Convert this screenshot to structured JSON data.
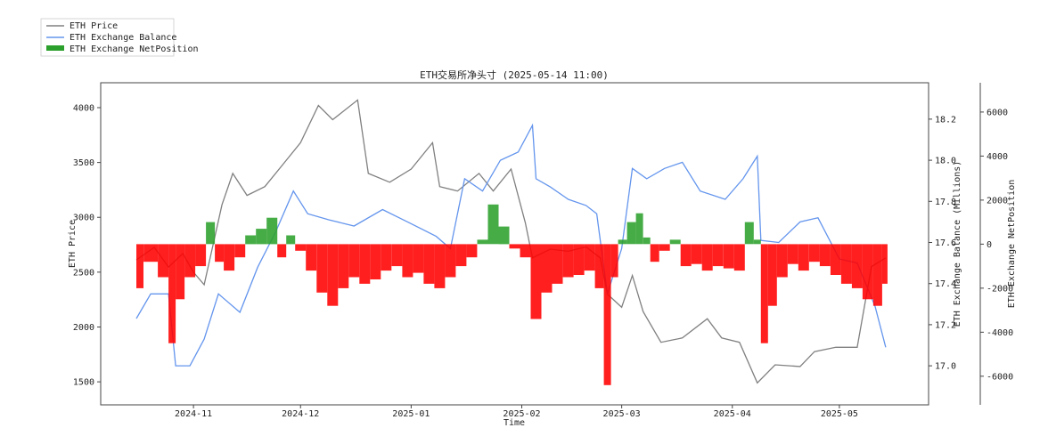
{
  "chart_data": {
    "type": "line",
    "title": "ETH交易所净头寸 (2025-05-14 11:00)",
    "xlabel": "Time",
    "ylabel_left": "ETH Price",
    "ylabel_right": "ETH Exchange Balance (Millions)",
    "ylabel_right2": "ETH Exchange NetPosition",
    "xlim": [
      "2024-10-06",
      "2025-05-26"
    ],
    "ylim_left": [
      1290,
      4227
    ],
    "ylim_right": [
      16.81,
      18.377
    ],
    "ylim_right2": [
      -7300,
      7330
    ],
    "xticks": [
      "2024-11",
      "2024-12",
      "2025-01",
      "2025-02",
      "2025-03",
      "2025-04",
      "2025-05"
    ],
    "yticks_left": [
      1500,
      2000,
      2500,
      3000,
      3500,
      4000
    ],
    "yticks_right": [
      "17.0",
      "17.2",
      "17.4",
      "17.6",
      "17.8",
      "18.0",
      "18.2"
    ],
    "yticks_right2": [
      -6000,
      -4000,
      -2000,
      0,
      2000,
      4000,
      6000
    ],
    "grid": false,
    "legend": {
      "placement": "outside-top-left",
      "entries": [
        "ETH Price",
        "ETH Exchange Balance",
        "ETH Exchange NetPosition"
      ]
    },
    "colors": {
      "price": "#808080",
      "balance": "#6495ed",
      "net_positive": "#2ca02c",
      "net_negative": "#ff0000"
    },
    "series": [
      {
        "name": "ETH Price",
        "axis": "left",
        "points": [
          [
            "2024-10-16",
            2612
          ],
          [
            "2024-10-21",
            2726
          ],
          [
            "2024-10-25",
            2547
          ],
          [
            "2024-10-29",
            2670
          ],
          [
            "2024-11-01",
            2500
          ],
          [
            "2024-11-04",
            2385
          ],
          [
            "2024-11-09",
            3115
          ],
          [
            "2024-11-12",
            3400
          ],
          [
            "2024-11-16",
            3200
          ],
          [
            "2024-11-21",
            3280
          ],
          [
            "2024-11-26",
            3480
          ],
          [
            "2024-12-01",
            3680
          ],
          [
            "2024-12-06",
            4020
          ],
          [
            "2024-12-10",
            3890
          ],
          [
            "2024-12-17",
            4070
          ],
          [
            "2024-12-20",
            3400
          ],
          [
            "2024-12-26",
            3320
          ],
          [
            "2025-01-01",
            3440
          ],
          [
            "2025-01-07",
            3680
          ],
          [
            "2025-01-09",
            3280
          ],
          [
            "2025-01-14",
            3240
          ],
          [
            "2025-01-20",
            3400
          ],
          [
            "2025-01-24",
            3240
          ],
          [
            "2025-01-29",
            3440
          ],
          [
            "2025-02-02",
            2950
          ],
          [
            "2025-02-04",
            2630
          ],
          [
            "2025-02-09",
            2710
          ],
          [
            "2025-02-14",
            2690
          ],
          [
            "2025-02-19",
            2730
          ],
          [
            "2025-02-23",
            2630
          ],
          [
            "2025-02-25",
            2300
          ],
          [
            "2025-03-01",
            2180
          ],
          [
            "2025-03-04",
            2470
          ],
          [
            "2025-03-07",
            2140
          ],
          [
            "2025-03-12",
            1860
          ],
          [
            "2025-03-18",
            1900
          ],
          [
            "2025-03-25",
            2075
          ],
          [
            "2025-03-29",
            1900
          ],
          [
            "2025-04-03",
            1860
          ],
          [
            "2025-04-08",
            1490
          ],
          [
            "2025-04-13",
            1655
          ],
          [
            "2025-04-20",
            1640
          ],
          [
            "2025-04-24",
            1775
          ],
          [
            "2025-04-30",
            1815
          ],
          [
            "2025-05-06",
            1815
          ],
          [
            "2025-05-10",
            2550
          ],
          [
            "2025-05-14",
            2630
          ]
        ]
      },
      {
        "name": "ETH Exchange Balance",
        "axis": "right",
        "points": [
          [
            "2024-10-16",
            17.23
          ],
          [
            "2024-10-20",
            17.35
          ],
          [
            "2024-10-25",
            17.35
          ],
          [
            "2024-10-27",
            17.0
          ],
          [
            "2024-10-31",
            17.0
          ],
          [
            "2024-11-04",
            17.13
          ],
          [
            "2024-11-08",
            17.35
          ],
          [
            "2024-11-14",
            17.26
          ],
          [
            "2024-11-19",
            17.48
          ],
          [
            "2024-11-24",
            17.65
          ],
          [
            "2024-11-29",
            17.85
          ],
          [
            "2024-12-03",
            17.74
          ],
          [
            "2024-12-09",
            17.71
          ],
          [
            "2024-12-16",
            17.68
          ],
          [
            "2024-12-24",
            17.76
          ],
          [
            "2024-12-31",
            17.7
          ],
          [
            "2025-01-08",
            17.63
          ],
          [
            "2025-01-12",
            17.57
          ],
          [
            "2025-01-16",
            17.91
          ],
          [
            "2025-01-21",
            17.85
          ],
          [
            "2025-01-26",
            18.0
          ],
          [
            "2025-01-31",
            18.04
          ],
          [
            "2025-02-04",
            18.17
          ],
          [
            "2025-02-05",
            17.91
          ],
          [
            "2025-02-09",
            17.87
          ],
          [
            "2025-02-14",
            17.81
          ],
          [
            "2025-02-19",
            17.78
          ],
          [
            "2025-02-22",
            17.74
          ],
          [
            "2025-02-25",
            17.35
          ],
          [
            "2025-03-01",
            17.57
          ],
          [
            "2025-03-04",
            17.96
          ],
          [
            "2025-03-08",
            17.91
          ],
          [
            "2025-03-13",
            17.96
          ],
          [
            "2025-03-18",
            17.99
          ],
          [
            "2025-03-23",
            17.85
          ],
          [
            "2025-03-30",
            17.81
          ],
          [
            "2025-04-04",
            17.91
          ],
          [
            "2025-04-08",
            18.02
          ],
          [
            "2025-04-09",
            17.61
          ],
          [
            "2025-04-14",
            17.6
          ],
          [
            "2025-04-20",
            17.7
          ],
          [
            "2025-04-25",
            17.72
          ],
          [
            "2025-05-01",
            17.52
          ],
          [
            "2025-05-06",
            17.5
          ],
          [
            "2025-05-11",
            17.29
          ],
          [
            "2025-05-14",
            17.09
          ]
        ]
      },
      {
        "name": "ETH Exchange NetPosition",
        "axis": "right2",
        "points": [
          [
            "2024-10-16",
            -2000
          ],
          [
            "2024-10-20",
            -800
          ],
          [
            "2024-10-24",
            -1500
          ],
          [
            "2024-10-26",
            -4500
          ],
          [
            "2024-10-28",
            -2500
          ],
          [
            "2024-10-31",
            -1500
          ],
          [
            "2024-11-03",
            -1000
          ],
          [
            "2024-11-06",
            1000
          ],
          [
            "2024-11-08",
            -800
          ],
          [
            "2024-11-11",
            -1200
          ],
          [
            "2024-11-14",
            -600
          ],
          [
            "2024-11-17",
            400
          ],
          [
            "2024-11-20",
            700
          ],
          [
            "2024-11-23",
            1200
          ],
          [
            "2024-11-26",
            -600
          ],
          [
            "2024-11-28",
            400
          ],
          [
            "2024-12-01",
            -300
          ],
          [
            "2024-12-04",
            -1200
          ],
          [
            "2024-12-07",
            -2200
          ],
          [
            "2024-12-10",
            -2800
          ],
          [
            "2024-12-13",
            -2000
          ],
          [
            "2024-12-16",
            -1500
          ],
          [
            "2024-12-19",
            -1800
          ],
          [
            "2024-12-22",
            -1600
          ],
          [
            "2024-12-25",
            -1200
          ],
          [
            "2024-12-28",
            -1000
          ],
          [
            "2024-12-31",
            -1500
          ],
          [
            "2025-01-03",
            -1300
          ],
          [
            "2025-01-06",
            -1800
          ],
          [
            "2025-01-09",
            -2000
          ],
          [
            "2025-01-12",
            -1500
          ],
          [
            "2025-01-15",
            -1000
          ],
          [
            "2025-01-18",
            -600
          ],
          [
            "2025-01-21",
            200
          ],
          [
            "2025-01-24",
            1800
          ],
          [
            "2025-01-27",
            800
          ],
          [
            "2025-01-30",
            -200
          ],
          [
            "2025-02-02",
            -600
          ],
          [
            "2025-02-05",
            -3400
          ],
          [
            "2025-02-08",
            -2200
          ],
          [
            "2025-02-11",
            -1800
          ],
          [
            "2025-02-14",
            -1500
          ],
          [
            "2025-02-17",
            -1400
          ],
          [
            "2025-02-20",
            -1200
          ],
          [
            "2025-02-23",
            -2000
          ],
          [
            "2025-02-25",
            -6400
          ],
          [
            "2025-02-27",
            -1500
          ],
          [
            "2025-03-01",
            200
          ],
          [
            "2025-03-04",
            1000
          ],
          [
            "2025-03-06",
            1400
          ],
          [
            "2025-03-08",
            300
          ],
          [
            "2025-03-10",
            -800
          ],
          [
            "2025-03-13",
            -300
          ],
          [
            "2025-03-16",
            200
          ],
          [
            "2025-03-19",
            -1000
          ],
          [
            "2025-03-22",
            -900
          ],
          [
            "2025-03-25",
            -1200
          ],
          [
            "2025-03-28",
            -1000
          ],
          [
            "2025-03-31",
            -1100
          ],
          [
            "2025-04-03",
            -1200
          ],
          [
            "2025-04-06",
            1000
          ],
          [
            "2025-04-08",
            200
          ],
          [
            "2025-04-10",
            -4500
          ],
          [
            "2025-04-12",
            -2800
          ],
          [
            "2025-04-15",
            -1500
          ],
          [
            "2025-04-18",
            -900
          ],
          [
            "2025-04-21",
            -1200
          ],
          [
            "2025-04-24",
            -800
          ],
          [
            "2025-04-27",
            -1000
          ],
          [
            "2025-04-30",
            -1400
          ],
          [
            "2025-05-03",
            -1800
          ],
          [
            "2025-05-06",
            -2000
          ],
          [
            "2025-05-09",
            -2500
          ],
          [
            "2025-05-12",
            -2800
          ],
          [
            "2025-05-14",
            -1800
          ]
        ]
      }
    ]
  }
}
